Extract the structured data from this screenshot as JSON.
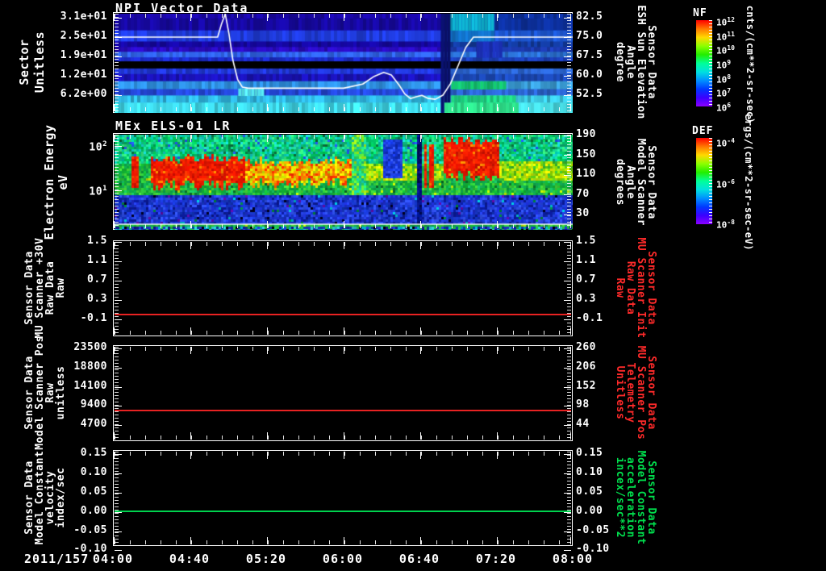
{
  "app": {
    "bg": "#000000",
    "fg": "#ffffff"
  },
  "colors": {
    "red_label": "#ff2a2a",
    "green_label": "#00e04e",
    "red_line": "#e82222",
    "green_line": "#00d24e",
    "white": "#ffffff"
  },
  "xaxis": {
    "date": "2011/157",
    "tick_labels": [
      "04:00",
      "04:40",
      "05:20",
      "06:00",
      "06:40",
      "07:20",
      "08:00"
    ]
  },
  "panels": {
    "npi": {
      "title": "NPI Vector Data",
      "left_label": "Sector\nUnitless",
      "left_ticks": [
        "3.1e+01",
        "2.5e+01",
        "1.9e+01",
        "1.2e+01",
        "6.2e+00"
      ],
      "right_ticks": [
        "82.5",
        "75.0",
        "67.5",
        "60.0",
        "52.5"
      ],
      "right_label": "Sensor Data\nESH Sun Elevation\nAngle\ndegree",
      "right_label_color": "#ffffff"
    },
    "els": {
      "title": "MEx ELS-01 LR",
      "left_label": "Electron Energy\neV",
      "left_ticks": [
        "10^2",
        "10^1"
      ],
      "right_ticks": [
        "190",
        "150",
        "110",
        "70",
        "30"
      ],
      "right_label": "Sensor Data\nModel Scanner\nAngle\ndegrees",
      "right_label_color": "#ffffff"
    },
    "mu30v": {
      "left_label": "Sensor Data\nMU Scanner +30V\nRaw Data\nRaw",
      "left_ticks": [
        "1.5",
        "1.1",
        "0.7",
        "0.3",
        "-0.1"
      ],
      "right_ticks": [
        "1.5",
        "1.1",
        "0.7",
        "0.3",
        "-0.1"
      ],
      "right_label": "Sensor Data\nMU Scanner Init\nRaw Data\nRaw",
      "right_label_color": "#ff2a2a"
    },
    "scanpos": {
      "left_label": "Sensor Data\nModel Scanner Pos\nRaw\nunitless",
      "left_ticks": [
        "23500",
        "18800",
        "14100",
        "9400",
        "4700"
      ],
      "right_ticks": [
        "260",
        "206",
        "152",
        "98",
        "44"
      ],
      "right_label": "Sensor Data\nMU Scanner Pos\nTelemetry\nUnitless",
      "right_label_color": "#ff2a2a"
    },
    "velocity": {
      "left_label": "Sensor Data\nModel Constant\nvelocity\nindex/sec",
      "left_ticks": [
        "0.15",
        "0.10",
        "0.05",
        "0.00",
        "-0.05",
        "-0.10"
      ],
      "right_ticks": [
        "0.15",
        "0.10",
        "0.05",
        "0.00",
        "-0.05",
        "-0.10"
      ],
      "right_label": "Sensor Data\nModel Constant\nacceleration\nincex/sec**2",
      "right_label_color": "#00e04e"
    }
  },
  "colorbars": {
    "nf": {
      "label": "NF",
      "tick_labels": [
        "10^12",
        "10^11",
        "10^10",
        "10^9",
        "10^8",
        "10^7",
        "10^6"
      ],
      "units": "cnts/(cm**2-sr-sec)",
      "gradient": [
        "#ff0000",
        "#ff7700",
        "#ffd900",
        "#8cff00",
        "#22ee00",
        "#00ff99",
        "#00e0e0",
        "#0090ff",
        "#0038ff",
        "#3c00ff",
        "#8a00ff"
      ]
    },
    "def": {
      "label": "DEF",
      "tick_labels": [
        "10^-4",
        "10^-6",
        "10^-8"
      ],
      "units": "ergs/(cm**2-sr-sec-eV)",
      "gradient": [
        "#ff0000",
        "#ff7700",
        "#ffd900",
        "#8cff00",
        "#22ee00",
        "#00ff99",
        "#00e0e0",
        "#0090ff",
        "#0038ff",
        "#3c00ff",
        "#8a00ff"
      ]
    }
  },
  "chart_data": [
    {
      "type": "heatmap",
      "panel": "npi",
      "title": "NPI Vector Data",
      "ylabel": "Sector (Unitless)",
      "x_range": [
        "04:00",
        "08:00"
      ],
      "rows": [
        {
          "y0": 0.0,
          "y1": 0.048,
          "l": "#1a07a6",
          "r": "#0c2f9a"
        },
        {
          "y0": 0.048,
          "y1": 0.168,
          "l": "#16089f",
          "r": "#0c2f9a"
        },
        {
          "y0": 0.168,
          "y1": 0.28,
          "l": "#1f3bdb",
          "r": "#1c54cc"
        },
        {
          "y0": 0.28,
          "y1": 0.336,
          "l": "#15079f",
          "r": "#123a9e"
        },
        {
          "y0": 0.336,
          "y1": 0.384,
          "l": "#2a0bc0",
          "r": "#1c3aae"
        },
        {
          "y0": 0.384,
          "y1": 0.44,
          "l": "#2f62e8",
          "r": "#2a6fd0"
        },
        {
          "y0": 0.44,
          "y1": 0.48,
          "l": "#1c2bc9",
          "r": "#1c3fb8"
        },
        {
          "y0": 0.48,
          "y1": 0.552,
          "l": "#000000",
          "r": "#000000"
        },
        {
          "y0": 0.552,
          "y1": 0.608,
          "l": "#2138d8",
          "r": "#2a62cc"
        },
        {
          "y0": 0.608,
          "y1": 0.68,
          "l": "#1a12b8",
          "r": "#1c49b8"
        },
        {
          "y0": 0.68,
          "y1": 0.76,
          "l": "#2e8fe0",
          "r": "#3a9ed8"
        },
        {
          "y0": 0.76,
          "y1": 0.824,
          "l": "#2447d8",
          "r": "#2a62cc"
        },
        {
          "y0": 0.824,
          "y1": 0.896,
          "l": "#2fb7e2",
          "r": "#3ac4dc"
        },
        {
          "y0": 0.896,
          "y1": 1.0,
          "l": "#3fd9ea",
          "r": "#48dce4"
        }
      ],
      "right_zone_start": 0.728,
      "patches": [
        {
          "x": 0.73,
          "y": 0.0,
          "w": 0.095,
          "h": 0.17,
          "c": "#0da8c4"
        },
        {
          "x": 0.73,
          "y": 0.17,
          "w": 0.095,
          "h": 0.11,
          "c": "#1173c8"
        },
        {
          "x": 0.79,
          "y": 0.28,
          "w": 0.055,
          "h": 0.16,
          "c": "#1b2fb4"
        },
        {
          "x": 0.712,
          "y": 0.0,
          "w": 0.016,
          "h": 1.0,
          "c": "#0a1272"
        },
        {
          "x": 0.27,
          "y": 0.755,
          "w": 0.05,
          "h": 0.07,
          "c": "#55e8f0"
        },
        {
          "x": 0.735,
          "y": 0.68,
          "w": 0.115,
          "h": 0.08,
          "c": "#12c46a"
        },
        {
          "x": 0.735,
          "y": 0.824,
          "w": 0.135,
          "h": 0.072,
          "c": "#1ed47e"
        },
        {
          "x": 0.72,
          "y": 0.896,
          "w": 0.16,
          "h": 0.104,
          "c": "#2ee08a"
        }
      ],
      "overlay_line": {
        "name": "ESH Sun Elevation Angle",
        "color": "#ffffff",
        "axis": "right",
        "x_minutes": [
          0,
          54,
          56,
          58,
          60,
          62,
          64.5,
          67,
          70,
          120,
          130,
          136,
          141,
          145,
          149,
          152,
          155,
          158,
          161,
          164,
          168,
          172,
          176,
          180,
          184,
          188,
          240
        ],
        "values_deg": [
          75,
          75,
          80,
          84,
          76,
          66,
          58.5,
          55.6,
          55.2,
          55.2,
          56.8,
          59.8,
          61.3,
          60.3,
          56.5,
          53,
          51.2,
          51.9,
          52.4,
          51.3,
          50.9,
          52.5,
          57,
          64,
          71,
          75,
          75
        ]
      }
    },
    {
      "type": "heatmap",
      "panel": "els",
      "title": "MEx ELS-01 LR",
      "ylabel": "Electron Energy (eV)",
      "y_scale": "log",
      "white_line_frac": 0.935,
      "regions": [
        {
          "x": [
            0.515,
            0.545
          ],
          "y": [
            0.0,
            0.62
          ],
          "pal": "topbright"
        },
        {
          "x": [
            0.582,
            0.628
          ],
          "y": [
            0.03,
            0.45
          ],
          "pal": "bluepatch"
        },
        {
          "x": [
            0.655,
            0.67
          ],
          "y": [
            0.0,
            0.93
          ],
          "pal": "navy"
        },
        {
          "x": [
            0.672,
            0.681
          ],
          "y": [
            0.1,
            0.55
          ],
          "pal": "hot"
        },
        {
          "x": [
            0.686,
            0.695
          ],
          "y": [
            0.1,
            0.55
          ],
          "pal": "hot"
        },
        {
          "x": [
            0.718,
            0.838
          ],
          "y": [
            0.05,
            0.44
          ],
          "pal": "hot",
          "ragged": true
        },
        {
          "x": [
            0.035,
            0.052
          ],
          "y": [
            0.22,
            0.55
          ],
          "pal": "hot"
        },
        {
          "x": [
            0.075,
            0.285
          ],
          "y": [
            0.24,
            0.52
          ],
          "pal": "hot",
          "ragged": true
        },
        {
          "x": [
            0.285,
            0.52
          ],
          "y": [
            0.27,
            0.5
          ],
          "pal": "warm",
          "ragged": true
        },
        {
          "x": [
            0.52,
            0.66
          ],
          "y": [
            0.28,
            0.48
          ],
          "pal": "yellowgreen"
        },
        {
          "x": [
            0.695,
            0.718
          ],
          "y": [
            0.28,
            0.48
          ],
          "pal": "yellowgreen"
        },
        {
          "x": [
            0.838,
            1.001
          ],
          "y": [
            0.26,
            0.48
          ],
          "pal": "yellowgreen"
        },
        {
          "x": [
            0.0,
            1.001
          ],
          "y": [
            0.0,
            0.3
          ],
          "pal": "topmix"
        },
        {
          "x": [
            0.0,
            1.001
          ],
          "y": [
            0.3,
            0.62
          ],
          "pal": "greens"
        },
        {
          "x": [
            0.0,
            1.001
          ],
          "y": [
            0.62,
            0.935
          ],
          "pal": "blues"
        },
        {
          "x": [
            0.0,
            1.001
          ],
          "y": [
            0.945,
            1.001
          ],
          "pal": "stripmix"
        }
      ],
      "palettes": {
        "navy": {
          "main": [
            "#000c66",
            "#001488",
            "#000a50",
            "#0a1a99"
          ],
          "rare": []
        },
        "bluepatch": {
          "main": [
            "#1133cc",
            "#2247ee",
            "#0f2cb8",
            "#3355f0",
            "#1a3add"
          ],
          "rare": []
        },
        "hot": {
          "main": [
            "#f01800",
            "#ff2200",
            "#e01000",
            "#ff3300",
            "#d81400"
          ],
          "rare": [
            "#ff8800"
          ]
        },
        "warm": {
          "main": [
            "#ff9c00",
            "#ffd000",
            "#ff5e00",
            "#f0e800",
            "#ff3000",
            "#c8e000",
            "#ff7700"
          ],
          "rare": []
        },
        "yellowgreen": {
          "main": [
            "#c8e800",
            "#8cd800",
            "#f0ee00",
            "#5ac816",
            "#a8e818",
            "#38b830"
          ],
          "rare": []
        },
        "topbright": {
          "main": [
            "#2ee060",
            "#60e838",
            "#1ed488",
            "#9ce818",
            "#12c4a0"
          ],
          "rare": []
        },
        "topmix": {
          "main": [
            "#00c455",
            "#00da70",
            "#12d492",
            "#00c2aa",
            "#20dc9c",
            "#00b25e",
            "#16ccc8",
            "#0c9e6a",
            "#32e47c"
          ],
          "rare": [
            "#2255ee",
            "#0a6a3a"
          ]
        },
        "greens": {
          "main": [
            "#12b433",
            "#2ec43a",
            "#0fa84e",
            "#42d237",
            "#16ba60",
            "#0c9e40"
          ],
          "rare": [
            "#bce800",
            "#0c6a2a"
          ]
        },
        "blues": {
          "main": [
            "#1c2ccc",
            "#2440e4",
            "#1030b4",
            "#0a1a94",
            "#3050ec",
            "#1838d0"
          ],
          "rare": [
            "#000020",
            "#00b8cc",
            "#008840",
            "#5a0aa0"
          ]
        },
        "stripmix": {
          "main": [
            "#2233cc",
            "#00a0c0",
            "#22b444",
            "#111488",
            "#2cc8cc",
            "#0a3a9a"
          ],
          "rare": [
            "#000000"
          ]
        }
      }
    },
    {
      "type": "line",
      "panel": "mu30v",
      "name": "MU Scanner +30V Raw",
      "value": 0.0,
      "color": "#e82222"
    },
    {
      "type": "line",
      "panel": "scanpos",
      "name": "Model Scanner Pos Raw",
      "value": 8200,
      "color": "#e82222"
    },
    {
      "type": "line",
      "panel": "velocity",
      "name": "Model Constant velocity",
      "value": 0.0,
      "color": "#00d24e"
    }
  ]
}
